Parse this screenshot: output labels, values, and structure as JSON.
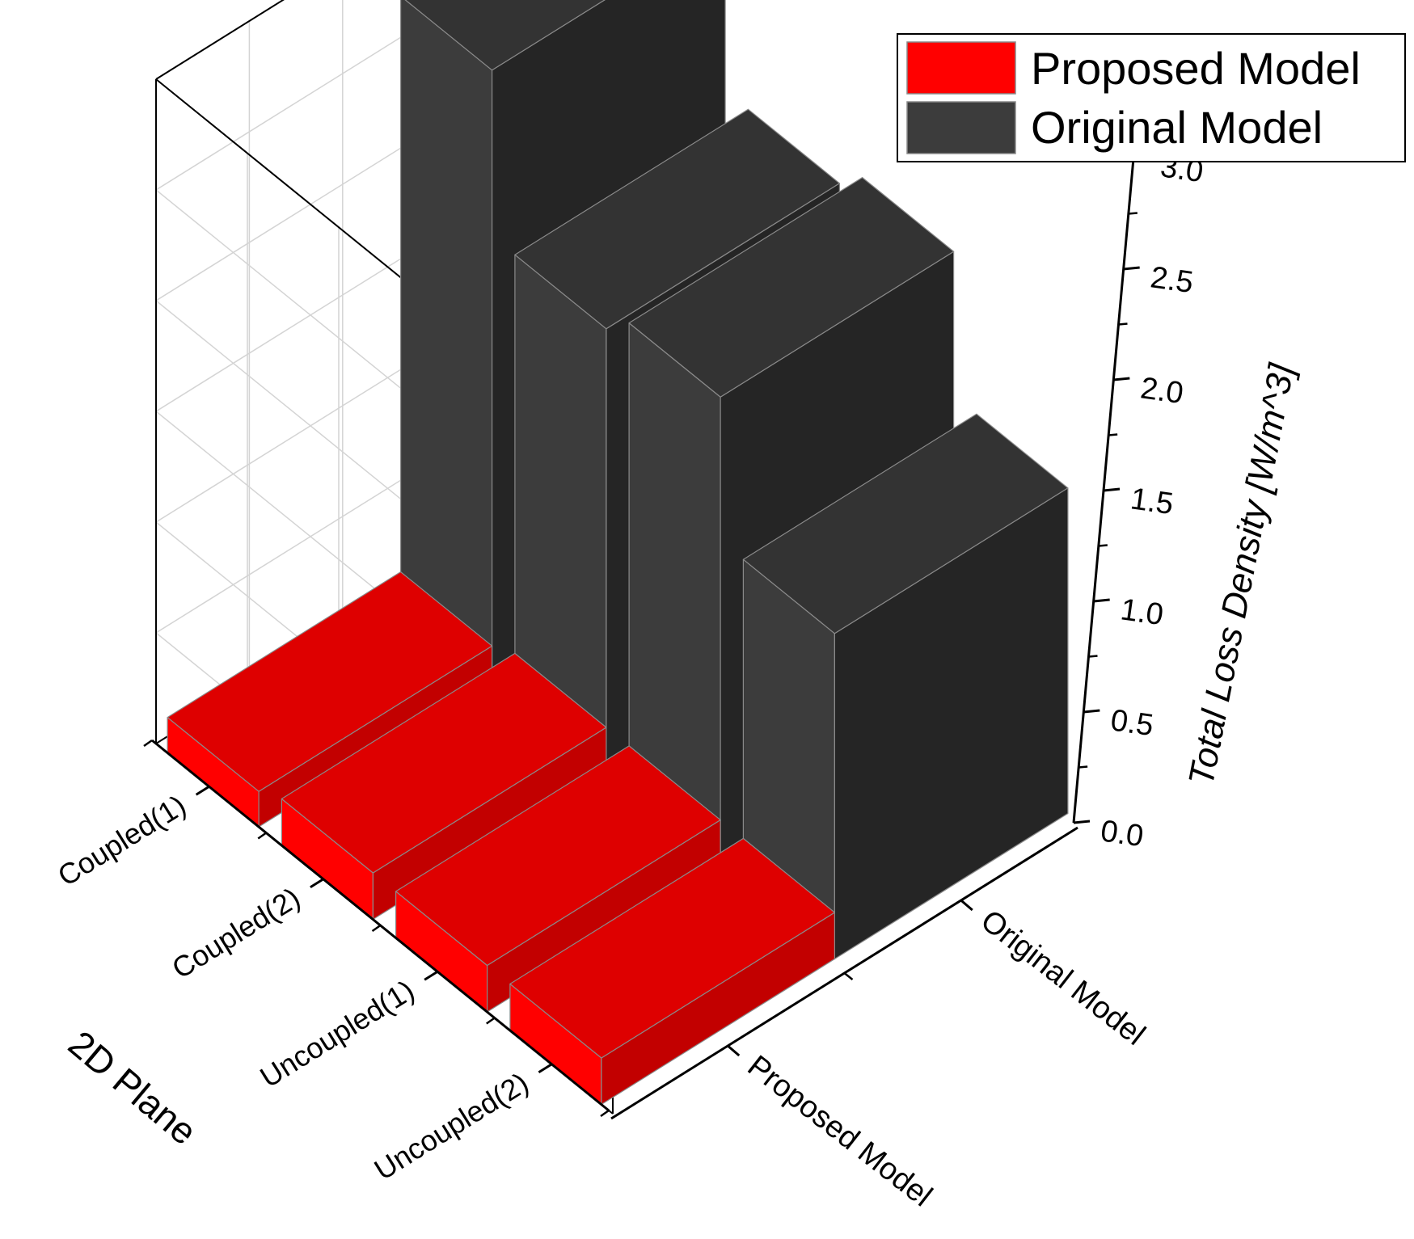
{
  "chart_data": {
    "type": "bar3d",
    "categories": [
      "Coupled(1)",
      "Coupled(2)",
      "Uncoupled(1)",
      "Uncoupled(2)"
    ],
    "depth_categories": [
      "Original Model",
      "Proposed Model"
    ],
    "series": [
      {
        "name": "Proposed Model",
        "color": "#ff0000",
        "values": [
          0.16,
          0.21,
          0.21,
          0.21
        ]
      },
      {
        "name": "Original Model",
        "color": "#3c3c3c",
        "values": [
          2.76,
          2.01,
          2.12,
          1.47
        ]
      }
    ],
    "zlabel": "Total Loss Density [W/m^3]",
    "xlabel": "2D Plane",
    "zlim": [
      0,
      3.0
    ],
    "z_ticks": [
      "0.0",
      "0.5",
      "1.0",
      "1.5",
      "2.0",
      "2.5",
      "3.0"
    ],
    "grid": true,
    "legend_position": "top-right"
  }
}
